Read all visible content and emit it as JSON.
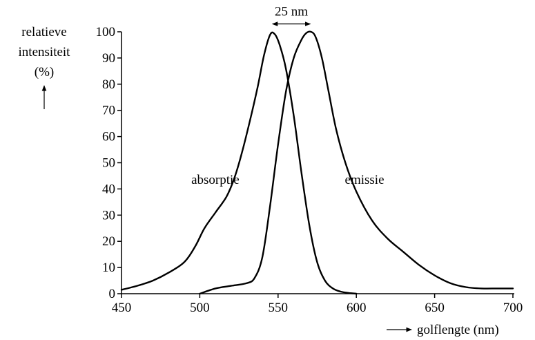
{
  "chart_data": {
    "type": "line",
    "title": "",
    "ylabel_lines": [
      "relatieve",
      "intensiteit",
      "(%)"
    ],
    "xlabel": "golflengte (nm)",
    "xlim": [
      450,
      700
    ],
    "ylim": [
      0,
      100
    ],
    "xticks": [
      450,
      500,
      550,
      600,
      650,
      700
    ],
    "yticks": [
      0,
      10,
      20,
      30,
      40,
      50,
      60,
      70,
      80,
      90,
      100
    ],
    "grid": false,
    "legend": "none",
    "series": [
      {
        "name": "absorptie",
        "x": [
          450,
          460,
          470,
          480,
          490,
          497,
          503,
          510,
          517,
          522,
          527,
          532,
          537,
          541,
          545,
          548,
          551,
          555,
          560,
          565,
          570,
          575,
          580,
          585,
          590,
          595,
          600
        ],
        "y": [
          1.5,
          3,
          5,
          8,
          12,
          18,
          25,
          31,
          37,
          44,
          54,
          66,
          79,
          91,
          99,
          99,
          95,
          86,
          68,
          46,
          26,
          12,
          5,
          2,
          0.8,
          0.3,
          0
        ]
      },
      {
        "name": "emissie",
        "x": [
          500,
          510,
          520,
          530,
          535,
          540,
          545,
          550,
          555,
          560,
          565,
          568,
          571,
          574,
          578,
          582,
          587,
          593,
          600,
          610,
          620,
          630,
          640,
          650,
          660,
          670,
          680,
          690,
          700
        ],
        "y": [
          0,
          2,
          3,
          4,
          6,
          14,
          34,
          57,
          77,
          90,
          97,
          99.5,
          100,
          98,
          90,
          78,
          63,
          50,
          39,
          28,
          21,
          16,
          11,
          7,
          4,
          2.5,
          2,
          2,
          2
        ]
      }
    ],
    "annotations": [
      {
        "text": "absorptie",
        "x": 520,
        "y": 42
      },
      {
        "text": "emissie",
        "x": 590,
        "y": 42
      },
      {
        "text": "25 nm",
        "x_from": 546,
        "x_to": 571,
        "y": 103
      }
    ]
  }
}
